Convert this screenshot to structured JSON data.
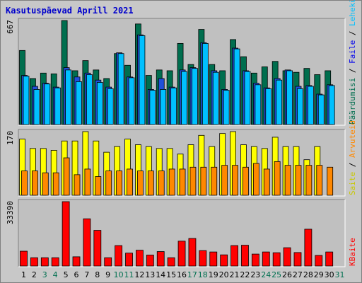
{
  "title": "Kasutuspäevad Aprill 2021",
  "colors": {
    "weekday": "#000000",
    "weekend": "#007050",
    "hits": "#006e4e",
    "files": "#00c0ff",
    "pages": "#2050d8",
    "visits": "#ffff00",
    "sites": "#ff8800",
    "kbytes": "#ff0000"
  },
  "side_labels": {
    "top": [
      {
        "text": "Päärdumisi",
        "color": "#006e4e"
      },
      {
        "text": " / ",
        "color": "#000000"
      },
      {
        "text": "Faile",
        "color": "#0000ee"
      },
      {
        "text": " / ",
        "color": "#000000"
      },
      {
        "text": "Lehekülgi",
        "color": "#00c0ff"
      }
    ],
    "middle": [
      {
        "text": "Saite",
        "color": "#c8c800"
      },
      {
        "text": " / ",
        "color": "#000000"
      },
      {
        "text": "Arvuteid",
        "color": "#ff8800"
      }
    ],
    "bottom": [
      {
        "text": "KBaite",
        "color": "#ff0000"
      }
    ]
  },
  "chart_data": [
    {
      "type": "bar",
      "title": "Kasutuspäevad Aprill 2021",
      "ylabel": "667",
      "ylim": [
        0,
        667
      ],
      "categories": [
        "1",
        "2",
        "3",
        "4",
        "5",
        "6",
        "7",
        "8",
        "9",
        "10",
        "11",
        "12",
        "13",
        "14",
        "15",
        "16",
        "17",
        "18",
        "19",
        "20",
        "21",
        "22",
        "23",
        "24",
        "25",
        "26",
        "27",
        "28",
        "29",
        "30",
        "31"
      ],
      "series": [
        {
          "name": "Päärdumisi",
          "values": [
            475,
            295,
            330,
            325,
            667,
            345,
            410,
            350,
            295,
            455,
            380,
            645,
            315,
            350,
            345,
            520,
            385,
            610,
            385,
            345,
            545,
            435,
            330,
            370,
            405,
            345,
            335,
            360,
            320,
            345,
            0
          ]
        },
        {
          "name": "Faile",
          "values": [
            315,
            245,
            265,
            240,
            365,
            305,
            330,
            285,
            240,
            460,
            305,
            575,
            225,
            295,
            240,
            350,
            365,
            525,
            345,
            225,
            490,
            345,
            265,
            235,
            295,
            350,
            245,
            250,
            195,
            255,
            0
          ]
        },
        {
          "name": "Lehekülgi",
          "values": [
            310,
            225,
            260,
            235,
            350,
            275,
            320,
            270,
            230,
            455,
            300,
            570,
            220,
            225,
            235,
            340,
            360,
            520,
            335,
            220,
            485,
            340,
            255,
            230,
            285,
            345,
            230,
            245,
            190,
            250,
            0
          ]
        }
      ]
    },
    {
      "type": "bar",
      "ylabel": "170",
      "ylim": [
        0,
        170
      ],
      "categories": [
        "1",
        "2",
        "3",
        "4",
        "5",
        "6",
        "7",
        "8",
        "9",
        "10",
        "11",
        "12",
        "13",
        "14",
        "15",
        "16",
        "17",
        "18",
        "19",
        "20",
        "21",
        "22",
        "23",
        "24",
        "25",
        "26",
        "27",
        "28",
        "29",
        "30",
        "31"
      ],
      "series": [
        {
          "name": "Saite",
          "values": [
            150,
            125,
            125,
            120,
            145,
            145,
            170,
            145,
            115,
            130,
            150,
            135,
            130,
            125,
            125,
            110,
            135,
            160,
            130,
            165,
            170,
            135,
            130,
            125,
            155,
            130,
            130,
            95,
            130,
            0,
            0
          ]
        },
        {
          "name": "Arvuteid",
          "values": [
            65,
            65,
            60,
            60,
            100,
            55,
            70,
            50,
            65,
            65,
            70,
            65,
            65,
            65,
            70,
            70,
            75,
            75,
            75,
            80,
            80,
            75,
            85,
            70,
            90,
            80,
            80,
            80,
            80,
            75,
            0
          ]
        }
      ]
    },
    {
      "type": "bar",
      "ylabel": "33390",
      "ylim": [
        0,
        33390
      ],
      "categories": [
        "1",
        "2",
        "3",
        "4",
        "5",
        "6",
        "7",
        "8",
        "9",
        "10",
        "11",
        "12",
        "13",
        "14",
        "15",
        "16",
        "17",
        "18",
        "19",
        "20",
        "21",
        "22",
        "23",
        "24",
        "25",
        "26",
        "27",
        "28",
        "29",
        "30",
        "31"
      ],
      "series": [
        {
          "name": "KBaite",
          "values": [
            7700,
            4300,
            4300,
            4300,
            33390,
            4800,
            24500,
            18500,
            4300,
            10600,
            6700,
            8200,
            5700,
            7500,
            4300,
            12900,
            14300,
            8000,
            7300,
            5800,
            10600,
            10800,
            6200,
            7300,
            6900,
            9500,
            7000,
            19100,
            5500,
            7300,
            0
          ]
        }
      ]
    }
  ]
}
